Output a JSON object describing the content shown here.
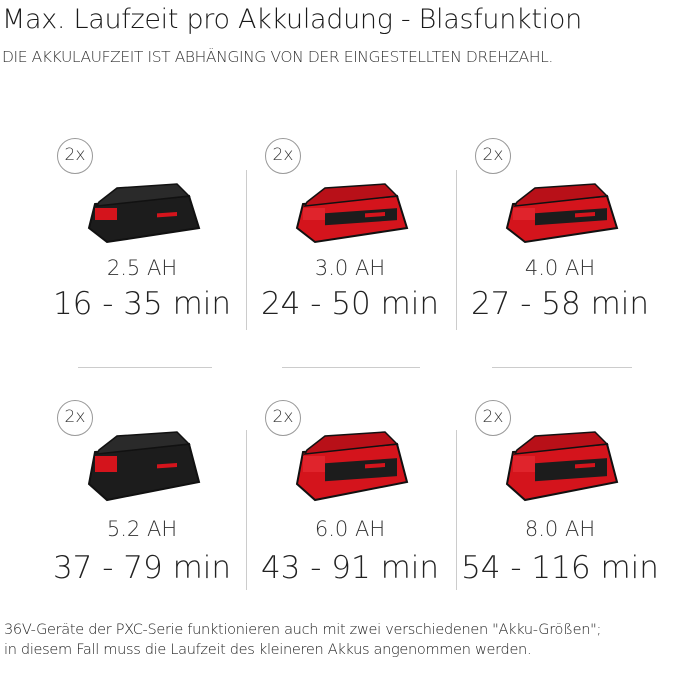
{
  "header": {
    "title": "Max. Laufzeit pro Akkuladung - Blasfunktion",
    "subtitle": "DIE AKKULAUFZEIT IST ABHÄNGING VON DER EINGESTELLTEN DREHZAHL."
  },
  "batteries": [
    {
      "count": "2x",
      "capacity": "2.5 AH",
      "runtime": "16 - 35 min",
      "body_color": "#1c1c1c",
      "accent_color": "#d4141c"
    },
    {
      "count": "2x",
      "capacity": "3.0 AH",
      "runtime": "24 - 50 min",
      "body_color": "#d4141c",
      "accent_color": "#1c1c1c"
    },
    {
      "count": "2x",
      "capacity": "4.0 AH",
      "runtime": "27 - 58 min",
      "body_color": "#d4141c",
      "accent_color": "#1c1c1c"
    },
    {
      "count": "2x",
      "capacity": "5.2 AH",
      "runtime": "37 - 79 min",
      "body_color": "#1c1c1c",
      "accent_color": "#d4141c"
    },
    {
      "count": "2x",
      "capacity": "6.0 AH",
      "runtime": "43 - 91 min",
      "body_color": "#d4141c",
      "accent_color": "#1c1c1c"
    },
    {
      "count": "2x",
      "capacity": "8.0 AH",
      "runtime": "54 - 116 min",
      "body_color": "#d4141c",
      "accent_color": "#1c1c1c"
    }
  ],
  "footer": {
    "line1": "36V-Geräte der PXC-Serie funktionieren auch mit zwei verschiedenen \"Akku-Größen\";",
    "line2": "in diesem Fall muss die Laufzeit des kleineren Akkus angenommen werden."
  }
}
